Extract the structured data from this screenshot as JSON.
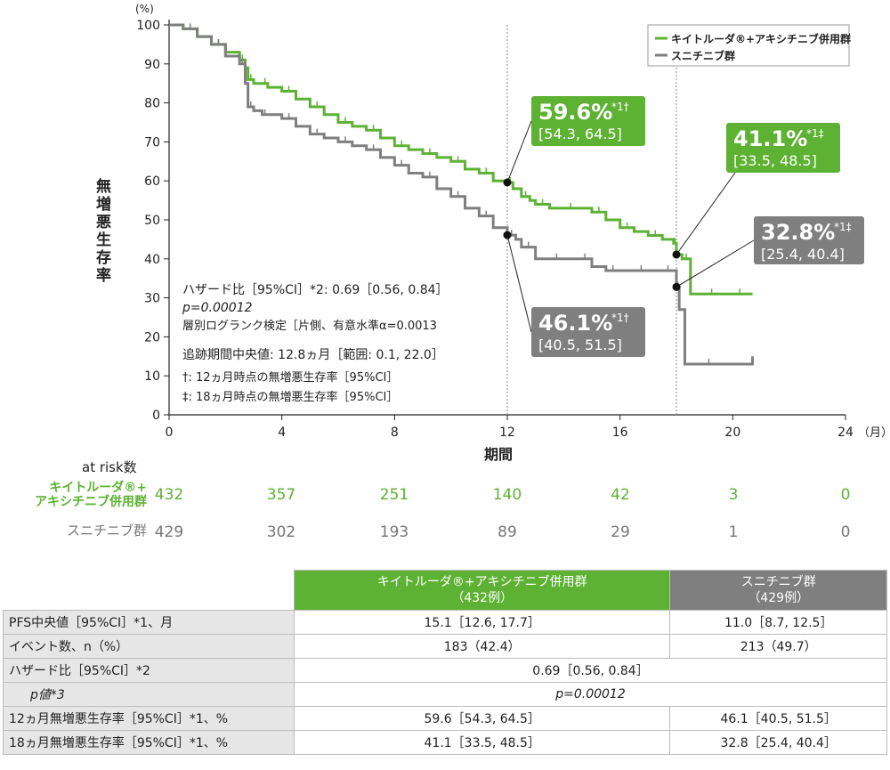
{
  "chart_data": {
    "type": "line",
    "y_unit": "(%)",
    "ylabel": "無増悪生存率",
    "xlabel": "期間",
    "x_unit": "（月）",
    "x_ticks": [
      "0",
      "4",
      "8",
      "12",
      "16",
      "20",
      "24"
    ],
    "y_ticks": [
      "0",
      "10",
      "20",
      "30",
      "40",
      "50",
      "60",
      "70",
      "80",
      "90",
      "100"
    ],
    "xlim": [
      0,
      24
    ],
    "ylim": [
      0,
      100
    ],
    "series": [
      {
        "name": "キイトルーダ®+アキシチニブ併用群",
        "color": "#5db233",
        "x": [
          0,
          0.5,
          1,
          1.5,
          2,
          2.5,
          2.7,
          2.8,
          3,
          3.3,
          3.5,
          4,
          4.5,
          5,
          5.5,
          6,
          6.5,
          7,
          7.5,
          8,
          8.5,
          9,
          9.5,
          10,
          10.5,
          11,
          11.5,
          12,
          12.2,
          12.5,
          12.8,
          13,
          13.5,
          14,
          14.5,
          15,
          15.5,
          16,
          16.5,
          17,
          17.5,
          17.9,
          18,
          18.2,
          18.5,
          19,
          19.5,
          20,
          20.5,
          20.7
        ],
        "y": [
          100,
          99,
          97,
          95,
          93,
          91,
          89,
          86,
          85,
          85,
          84,
          83,
          81,
          79,
          77,
          75,
          74,
          73,
          71,
          69,
          68,
          67,
          66,
          65,
          63,
          62,
          60,
          59.6,
          58,
          56,
          55,
          54,
          53,
          53,
          53,
          52,
          50,
          48,
          47,
          46,
          45,
          44,
          41.1,
          40,
          31,
          31,
          31,
          31,
          31,
          31
        ]
      },
      {
        "name": "スニチニブ群",
        "color": "#7f7f7f",
        "x": [
          0,
          0.5,
          1,
          1.5,
          2,
          2.5,
          2.7,
          2.8,
          3,
          3.3,
          3.5,
          4,
          4.5,
          5,
          5.5,
          6,
          6.5,
          7,
          7.5,
          8,
          8.5,
          9,
          9.5,
          10,
          10.5,
          11,
          11.5,
          12,
          12.3,
          12.5,
          13,
          13.5,
          14,
          14.5,
          15,
          15.5,
          16,
          16.5,
          17,
          17.5,
          17.9,
          18,
          18.1,
          18.3,
          20,
          20.7
        ],
        "y": [
          100,
          99,
          97,
          95,
          92,
          90,
          85,
          79,
          78,
          77,
          77,
          76,
          74,
          72,
          71,
          70,
          69,
          68,
          66,
          64,
          62,
          61,
          58,
          56,
          53,
          51,
          48,
          46.1,
          45,
          43,
          40,
          40,
          40,
          40,
          38,
          37,
          37,
          37,
          37,
          37,
          37,
          32.8,
          27,
          13,
          13,
          15
        ]
      }
    ],
    "annotations": [
      {
        "value": "59.6%",
        "sup": "*1†",
        "ci": "[54.3, 64.5]",
        "x": 12,
        "y": 59.6,
        "series": 0
      },
      {
        "value": "41.1%",
        "sup": "*1‡",
        "ci": "[33.5, 48.5]",
        "x": 18,
        "y": 41.1,
        "series": 0
      },
      {
        "value": "32.8%",
        "sup": "*1‡",
        "ci": "[25.4, 40.4]",
        "x": 18,
        "y": 32.8,
        "series": 1
      },
      {
        "value": "46.1%",
        "sup": "*1†",
        "ci": "[40.5, 51.5]",
        "x": 12,
        "y": 46.1,
        "series": 1
      }
    ],
    "reference_lines_x": [
      12,
      18
    ],
    "legend_placement": "top-right",
    "grid": false
  },
  "stats_text": {
    "line1": "ハザード比［95%CI］*2: 0.69［0.56, 0.84］",
    "line2": "p=0.00012",
    "line3": "層別ログランク検定［片側、有意水準α=0.0013",
    "line4": "追跡期間中央値: 12.8ヵ月［範囲: 0.1, 22.0］",
    "line5": "†: 12ヵ月時点の無増悪生存率［95%CI］",
    "line6": "‡: 18ヵ月時点の無増悪生存率［95%CI］"
  },
  "at_risk": {
    "title": "at risk数",
    "rows": [
      {
        "label_line1": "キイトルーダ®+",
        "label_line2": "アキシチニブ併用群",
        "values": [
          "432",
          "357",
          "251",
          "140",
          "42",
          "3",
          "0"
        ]
      },
      {
        "label_line1": "スニチニブ群",
        "label_line2": "",
        "values": [
          "429",
          "302",
          "193",
          "89",
          "29",
          "1",
          "0"
        ]
      }
    ]
  },
  "table": {
    "header_col1": "キイトルーダ®+アキシチニブ併用群",
    "header_col1_sub": "（432例）",
    "header_col2": "スニチニブ群",
    "header_col2_sub": "（429例）",
    "colors": {
      "combo": "#5db233",
      "sun": "#7f7f7f"
    },
    "rows": [
      {
        "label": "PFS中央値［95%CI］*1、月",
        "c1": "15.1［12.6, 17.7］",
        "c2": "11.0［8.7, 12.5］"
      },
      {
        "label": "イベント数、n（%）",
        "c1": "183（42.4）",
        "c2": "213（49.7）"
      },
      {
        "label": "ハザード比［95%CI］*2",
        "merged": "0.69［0.56, 0.84］"
      },
      {
        "label": "p値*3",
        "merged": "p=0.00012"
      },
      {
        "label": "12ヵ月無増悪生存率［95%CI］*1、%",
        "c1": "59.6［54.3, 64.5］",
        "c2": "46.1［40.5, 51.5］"
      },
      {
        "label": "18ヵ月無増悪生存率［95%CI］*1、%",
        "c1": "41.1［33.5, 48.5］",
        "c2": "32.8［25.4, 40.4］"
      }
    ]
  }
}
